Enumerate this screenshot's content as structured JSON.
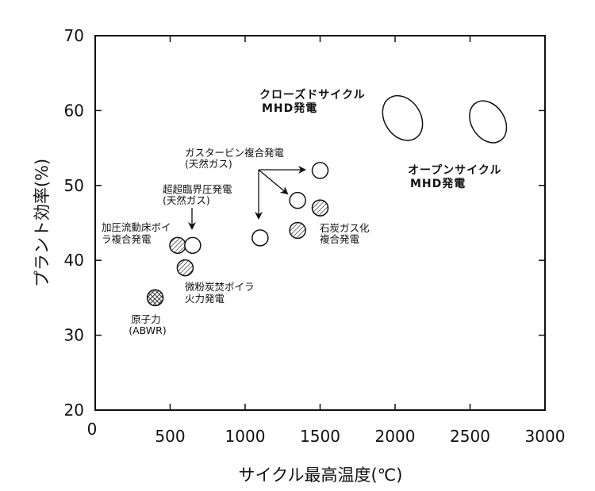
{
  "chart_data": {
    "type": "scatter",
    "xlabel": "サイクル最高温度(℃)",
    "ylabel": "プラント効率(%)",
    "xlim": [
      0,
      3000
    ],
    "ylim": [
      20,
      70
    ],
    "x_ticks": [
      "0",
      "500",
      "1000",
      "1500",
      "2000",
      "2500",
      "3000"
    ],
    "y_ticks": [
      "20",
      "30",
      "40",
      "50",
      "60",
      "70"
    ],
    "points": [
      {
        "x": 400,
        "y": 35,
        "fill": "crosshatch"
      },
      {
        "x": 550,
        "y": 42,
        "fill": "hatch"
      },
      {
        "x": 650,
        "y": 42,
        "fill": "open"
      },
      {
        "x": 600,
        "y": 39,
        "fill": "hatch"
      },
      {
        "x": 1100,
        "y": 43,
        "fill": "open"
      },
      {
        "x": 1350,
        "y": 48,
        "fill": "open"
      },
      {
        "x": 1500,
        "y": 52,
        "fill": "open"
      },
      {
        "x": 1350,
        "y": 44,
        "fill": "hatch"
      },
      {
        "x": 1500,
        "y": 47,
        "fill": "hatch"
      }
    ],
    "regions": [
      {
        "name": "closed-cycle-mhd",
        "cx": 2050,
        "cy": 59,
        "rx_data": 120,
        "ry_data": 3.2
      },
      {
        "name": "open-cycle-mhd",
        "cx": 2620,
        "cy": 58.5,
        "rx_data": 110,
        "ry_data": 3.0
      }
    ],
    "labels": [
      {
        "lines": [
          "原子力",
          "(ABWR)"
        ]
      },
      {
        "lines": [
          "加圧流動床ボイ",
          "ラ複合発電"
        ]
      },
      {
        "lines": [
          "超超臨界圧発電",
          "(天然ガス)"
        ]
      },
      {
        "lines": [
          "微粉炭焚ボイラ",
          "火力発電"
        ]
      },
      {
        "lines": [
          "ガスタービン複合発電",
          "(天然ガス)"
        ]
      },
      {
        "lines": [
          "石炭ガス化",
          "複合発電"
        ]
      },
      {
        "lines": [
          "クローズドサイクル",
          "MHD発電"
        ]
      },
      {
        "lines": [
          "オープンサイクル",
          "MHD発電"
        ]
      }
    ],
    "grid": false
  }
}
